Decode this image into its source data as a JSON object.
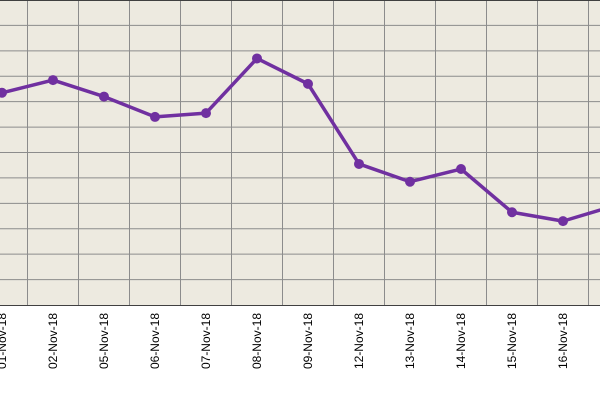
{
  "chart_data": {
    "type": "line",
    "title": "",
    "xlabel": "",
    "ylabel": "",
    "categories": [
      "01-Nov-18",
      "02-Nov-18",
      "05-Nov-18",
      "06-Nov-18",
      "07-Nov-18",
      "08-Nov-18",
      "09-Nov-18",
      "12-Nov-18",
      "13-Nov-18",
      "14-Nov-18",
      "15-Nov-18",
      "16-Nov-18",
      ""
    ],
    "series": [
      {
        "name": "",
        "color": "#7030a0",
        "values": [
          8.35,
          8.85,
          8.2,
          7.4,
          7.55,
          9.7,
          8.7,
          5.55,
          4.85,
          5.35,
          3.65,
          3.3,
          3.9
        ]
      }
    ],
    "ylim": [
      0,
      12
    ],
    "grid": true,
    "legend": "none",
    "colors": {
      "plot_background": "#edeae0",
      "grid": "#8c8c8c",
      "line": "#7030a0"
    }
  }
}
